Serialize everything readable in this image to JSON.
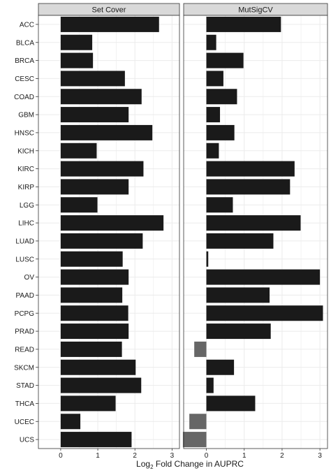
{
  "chart_data": {
    "type": "bar",
    "orientation": "horizontal",
    "categories": [
      "ACC",
      "BLCA",
      "BRCA",
      "CESC",
      "COAD",
      "GBM",
      "HNSC",
      "KICH",
      "KIRC",
      "KIRP",
      "LGG",
      "LIHC",
      "LUAD",
      "LUSC",
      "OV",
      "PAAD",
      "PCPG",
      "PRAD",
      "READ",
      "SKCM",
      "STAD",
      "THCA",
      "UCEC",
      "UCS"
    ],
    "panels": [
      {
        "name": "Set Cover",
        "values": [
          2.65,
          0.85,
          0.87,
          1.73,
          2.18,
          1.83,
          2.47,
          0.97,
          2.23,
          1.83,
          0.99,
          2.77,
          2.21,
          1.67,
          1.83,
          1.66,
          1.82,
          1.83,
          1.65,
          2.02,
          2.17,
          1.48,
          0.53,
          1.91
        ]
      },
      {
        "name": "MutSigCV",
        "values": [
          1.97,
          0.26,
          0.98,
          0.45,
          0.81,
          0.36,
          0.74,
          0.33,
          2.33,
          2.21,
          0.7,
          2.49,
          1.77,
          0.05,
          3.0,
          1.67,
          3.08,
          1.7,
          -0.32,
          0.73,
          0.19,
          1.29,
          -0.45,
          -0.62
        ]
      }
    ],
    "xticks": [
      0,
      1,
      2,
      3
    ],
    "xlim": [
      -0.6,
      3.2
    ],
    "xlabel_main": "Log",
    "xlabel_sub": "2",
    "xlabel_rest": " Fold Change in AUPRC",
    "ylabel": "",
    "grid": true,
    "colors": {
      "positive": "#1a1a1a",
      "negative": "#666666",
      "strip": "#d9d9d9",
      "grid": "#ebebeb",
      "frame": "#333333"
    }
  }
}
